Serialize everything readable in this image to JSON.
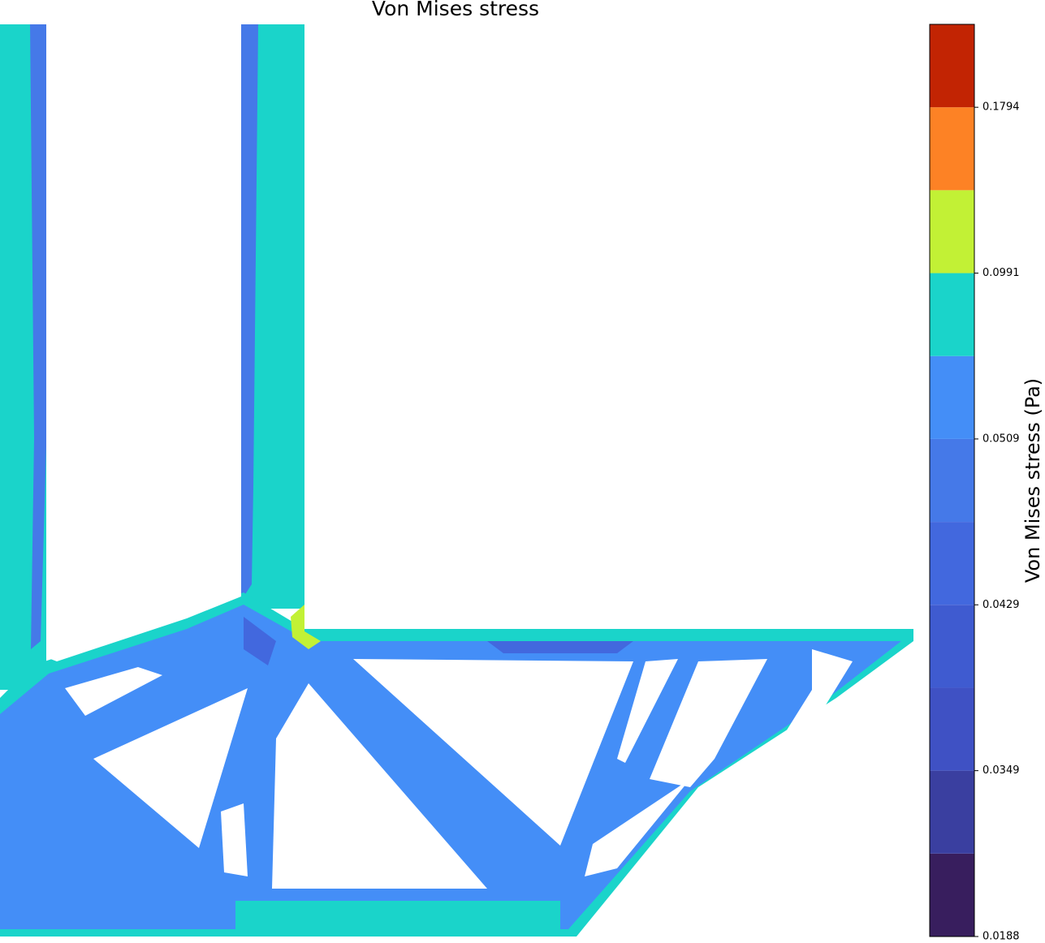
{
  "chart_data": {
    "type": "contour",
    "title": "Von Mises stress",
    "colorbar_label": "Von Mises stress (Pa)",
    "levels": [
      0.0188,
      0.027,
      0.0349,
      0.039,
      0.0429,
      0.047,
      0.0509,
      0.075,
      0.0991,
      0.139,
      0.1794,
      0.22
    ],
    "colors": [
      "#381e5e",
      "#3a3fa0",
      "#3f51c4",
      "#3f5bd0",
      "#4268de",
      "#4579e8",
      "#448ef7",
      "#1ad4ca",
      "#c2f135",
      "#fd8225",
      "#c22403"
    ],
    "colorbar_ticks": [
      0.0188,
      0.0349,
      0.0429,
      0.0509,
      0.0991,
      0.1794
    ]
  }
}
